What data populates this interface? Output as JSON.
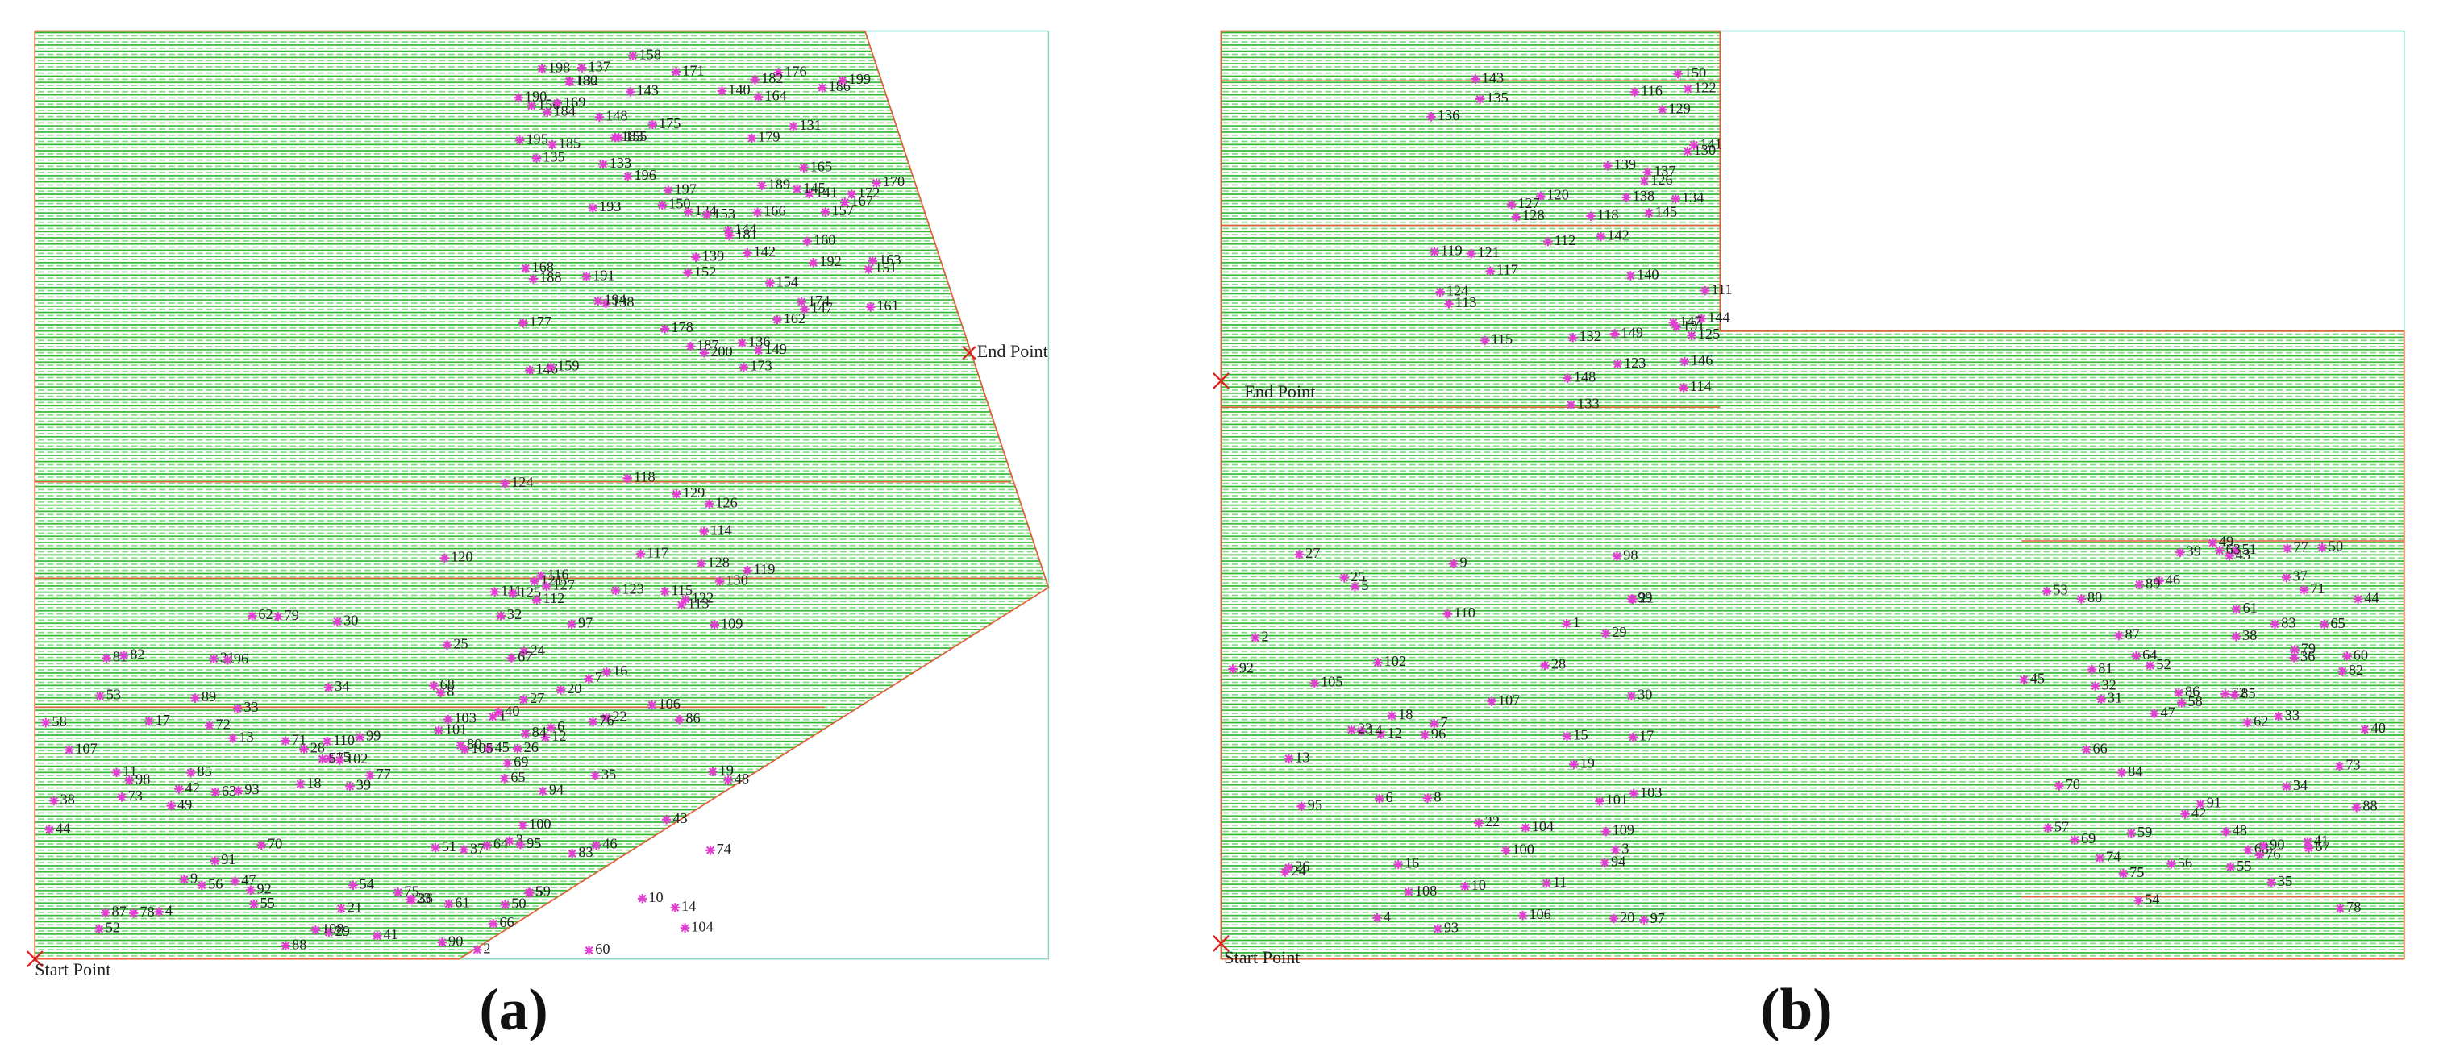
{
  "panels": [
    {
      "label": "(a)",
      "start": "Start Point",
      "end": "End Point",
      "points": [
        1,
        2,
        3,
        4,
        5,
        6,
        7,
        8,
        9,
        10,
        11,
        12,
        13,
        14,
        15,
        16,
        17,
        18,
        19,
        20,
        21,
        22,
        23,
        24,
        25,
        26,
        27,
        28,
        29,
        30,
        31,
        32,
        33,
        34,
        35,
        36,
        37,
        38,
        39,
        40,
        41,
        42,
        43,
        44,
        45,
        46,
        47,
        48,
        49,
        50,
        51,
        52,
        53,
        54,
        55,
        56,
        57,
        58,
        59,
        60,
        61,
        62,
        63,
        64,
        65,
        66,
        67,
        68,
        69,
        70,
        71,
        72,
        73,
        74,
        75,
        76,
        77,
        78,
        79,
        80,
        81,
        82,
        83,
        84,
        85,
        86,
        87,
        88,
        89,
        90,
        91,
        92,
        93,
        94,
        95,
        96,
        97,
        98,
        99,
        100,
        101,
        102,
        103,
        104,
        105,
        106,
        107,
        108,
        109,
        110,
        111,
        112,
        113,
        114,
        115,
        116,
        117,
        118,
        119,
        120,
        121,
        122,
        123,
        124,
        125,
        126,
        127,
        128,
        129,
        130,
        131,
        132,
        133,
        134,
        135,
        136,
        137,
        138,
        139,
        140,
        141,
        142,
        143,
        144,
        145,
        146,
        147,
        148,
        149,
        150,
        151,
        152,
        153,
        154,
        155,
        156,
        157,
        158,
        159,
        160,
        161,
        162,
        163,
        164,
        165,
        166,
        167,
        168,
        169,
        170,
        171,
        172,
        173,
        174,
        175,
        176,
        177,
        178,
        179,
        180,
        181,
        182,
        183,
        184,
        185,
        186,
        187,
        188,
        189,
        190,
        191,
        192,
        193,
        194,
        195,
        196,
        197,
        198,
        199,
        200
      ]
    },
    {
      "label": "(b)",
      "start": "Start Point",
      "end": "End Point",
      "points": [
        1,
        2,
        3,
        4,
        5,
        6,
        7,
        8,
        9,
        10,
        11,
        12,
        13,
        14,
        15,
        16,
        17,
        18,
        19,
        20,
        21,
        22,
        23,
        24,
        25,
        26,
        27,
        28,
        29,
        30,
        31,
        32,
        33,
        34,
        35,
        36,
        37,
        38,
        39,
        40,
        41,
        42,
        43,
        44,
        45,
        46,
        47,
        48,
        49,
        50,
        51,
        52,
        53,
        54,
        55,
        56,
        57,
        58,
        59,
        60,
        61,
        62,
        63,
        64,
        65,
        66,
        67,
        68,
        69,
        70,
        71,
        72,
        73,
        74,
        75,
        76,
        77,
        78,
        79,
        80,
        81,
        82,
        83,
        84,
        85,
        86,
        87,
        88,
        89,
        90,
        91,
        92,
        93,
        94,
        95,
        96,
        97,
        98,
        99,
        100,
        101,
        102,
        103,
        104,
        105,
        106,
        107,
        108,
        109,
        110,
        111,
        112,
        113,
        114,
        115,
        116,
        117,
        118,
        119,
        120,
        121,
        122,
        123,
        124,
        125,
        126,
        127,
        128,
        129,
        130,
        131,
        132,
        133,
        134,
        135,
        136,
        137,
        138,
        139,
        140,
        141,
        142,
        143,
        144,
        145,
        146,
        147,
        148,
        149,
        150
      ]
    }
  ]
}
